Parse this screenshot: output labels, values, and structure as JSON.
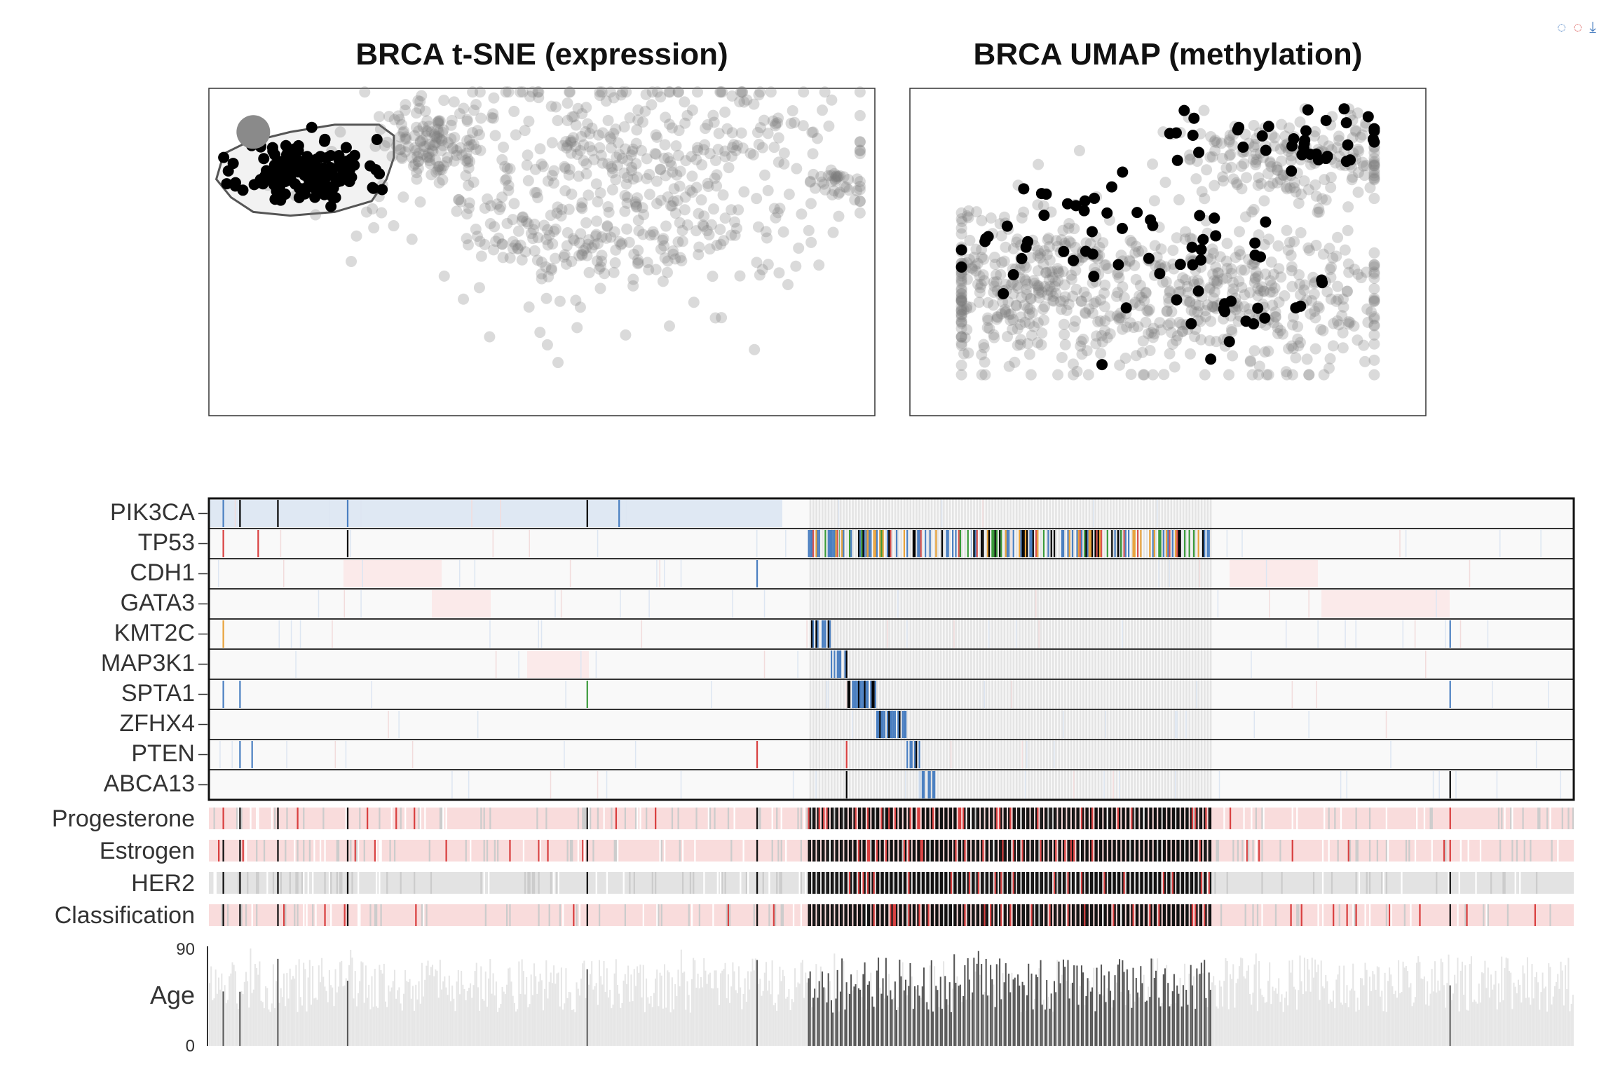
{
  "toolbar": {
    "items": [
      {
        "icon": "comment-blue-icon",
        "glyph": "◌",
        "color": "#4a7fc1"
      },
      {
        "icon": "comment-red-icon",
        "glyph": "◌",
        "color": "#d9534f"
      },
      {
        "icon": "download-icon",
        "glyph": "⤓",
        "color": "#4a7fc1"
      }
    ]
  },
  "colors": {
    "highlight": "#000000",
    "background_point": "#7a7a7a",
    "mut_missense": "#4a7fc1",
    "mut_nonsense": "#d9534f",
    "mut_other": "#3a9a3a",
    "mut_frameshift": "#e8a23a",
    "mut_background": "#dfe8f3",
    "selected_sample": "#000000",
    "negative_pink": "#f9dcdc",
    "positive_red": "#d94040",
    "neutral_grey": "#cccccc",
    "age_bar": "#e6e6e6",
    "age_bar_selected": "#555555"
  },
  "chart_data": [
    {
      "type": "scatter",
      "title": "BRCA t-SNE (expression)",
      "xlabel": "",
      "ylabel": "",
      "xlim": [
        -45,
        45
      ],
      "ylim": [
        -45,
        45
      ],
      "grid": false,
      "lasso": {
        "points": [
          [
            -43,
            27
          ],
          [
            -40,
            30
          ],
          [
            -34,
            33
          ],
          [
            -28,
            35
          ],
          [
            -22,
            35
          ],
          [
            -20,
            32
          ],
          [
            -20,
            26
          ],
          [
            -21,
            20
          ],
          [
            -23,
            14
          ],
          [
            -28,
            11
          ],
          [
            -34,
            10
          ],
          [
            -39,
            11
          ],
          [
            -42,
            15
          ],
          [
            -44,
            20
          ]
        ],
        "handle": [
          -39,
          33
        ]
      },
      "clusters": [
        {
          "name": "",
          "highlight": true,
          "n": 150,
          "center": [
            -32,
            22
          ],
          "spread": [
            4.2,
            4.5
          ],
          "seed": 11
        },
        {
          "name": "",
          "highlight": false,
          "n": 520,
          "center": [
            10,
            20
          ],
          "spread": [
            16,
            17
          ],
          "seed": 23
        },
        {
          "name": "",
          "highlight": false,
          "n": 120,
          "center": [
            -15,
            30
          ],
          "spread": [
            3.5,
            6
          ],
          "seed": 31
        },
        {
          "name": "",
          "highlight": false,
          "n": 70,
          "center": [
            4,
            2
          ],
          "spread": [
            6,
            4
          ],
          "seed": 37
        },
        {
          "name": "",
          "highlight": false,
          "n": 30,
          "center": [
            40,
            19
          ],
          "spread": [
            2,
            2
          ],
          "seed": 41
        }
      ]
    },
    {
      "type": "scatter",
      "title": "BRCA UMAP (methylation)",
      "xlabel": "",
      "ylabel": "",
      "xlim": [
        -10,
        10
      ],
      "ylim": [
        -8,
        8
      ],
      "grid": false,
      "clusters": [
        {
          "name": "",
          "highlight": false,
          "n": 380,
          "center": [
            -5,
            -2
          ],
          "spread": [
            2.6,
            2.0
          ],
          "seed": 51
        },
        {
          "name": "",
          "highlight": false,
          "n": 360,
          "center": [
            3.5,
            -2.4
          ],
          "spread": [
            3.4,
            2.0
          ],
          "seed": 53
        },
        {
          "name": "",
          "highlight": false,
          "n": 200,
          "center": [
            4.6,
            4.4
          ],
          "spread": [
            2.4,
            1.1
          ],
          "seed": 57
        },
        {
          "name": "",
          "highlight": true,
          "n": 38,
          "center": [
            4.4,
            5.6
          ],
          "spread": [
            2.8,
            0.9
          ],
          "seed": 61
        },
        {
          "name": "",
          "highlight": true,
          "n": 40,
          "center": [
            -3.2,
            0.6
          ],
          "spread": [
            3.0,
            1.3
          ],
          "seed": 67
        },
        {
          "name": "",
          "highlight": true,
          "n": 28,
          "center": [
            3.0,
            -2.2
          ],
          "spread": [
            2.6,
            1.6
          ],
          "seed": 71
        }
      ]
    },
    {
      "type": "heatmap",
      "title": "",
      "genes": [
        "PIK3CA",
        "TP53",
        "CDH1",
        "GATA3",
        "KMT2C",
        "MAP3K1",
        "SPTA1",
        "ZFHX4",
        "PTEN",
        "ABCA13"
      ],
      "clinical_tracks": [
        "Progesterone",
        "Estrogen",
        "HER2",
        "Classification"
      ],
      "n_samples": 900,
      "selected_range": [
        395,
        660
      ],
      "selected_extra": [
        9,
        20,
        45,
        91,
        249,
        361,
        818
      ],
      "age": {
        "label": "Age",
        "ymin": 0,
        "ymax": 90,
        "ticks": [
          "90",
          "0"
        ]
      }
    }
  ]
}
